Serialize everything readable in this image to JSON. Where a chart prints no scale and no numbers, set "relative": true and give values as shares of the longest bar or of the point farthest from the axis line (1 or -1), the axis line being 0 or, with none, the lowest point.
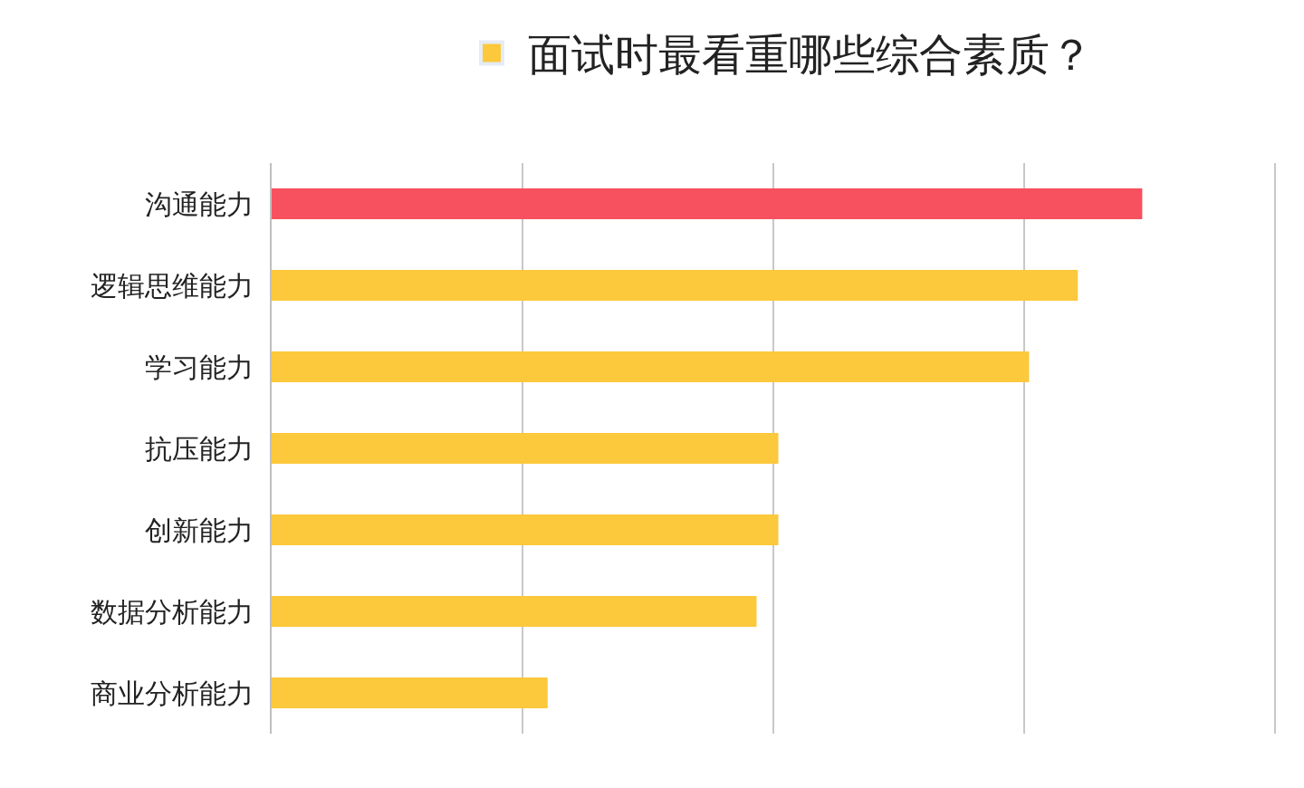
{
  "chart_data": {
    "type": "bar",
    "orientation": "horizontal",
    "relative": true,
    "grid": "x",
    "legend": "top",
    "categories": [
      "沟通能力",
      "逻辑思维能力",
      "学习能力",
      "抗压能力",
      "创新能力",
      "数据分析能力",
      "商业分析能力"
    ],
    "series": [
      {
        "name": "面试时最看重哪些综合素质？",
        "color": "#fcc83c",
        "colors": [
          "#f7505e",
          "#fcc83c",
          "#fcc83c",
          "#fcc83c",
          "#fcc83c",
          "#fcc83c",
          "#fcc83c"
        ],
        "values": [
          1,
          0.926,
          0.87,
          0.582,
          0.582,
          0.557,
          0.317
        ]
      }
    ]
  }
}
